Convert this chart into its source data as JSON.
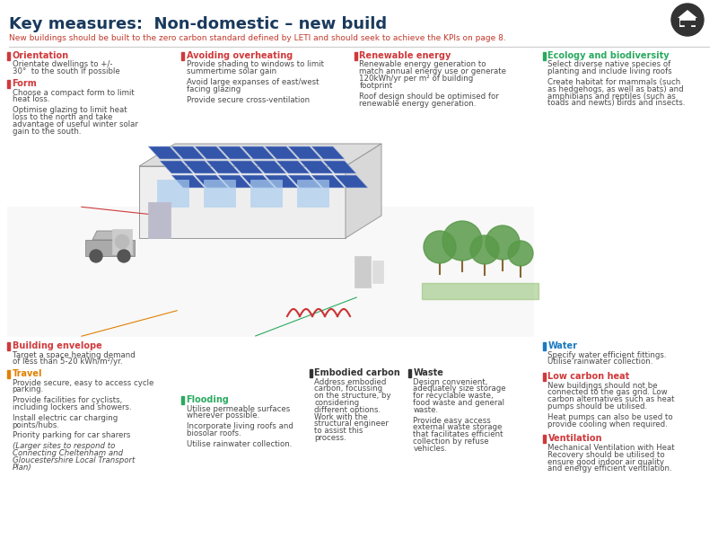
{
  "title": "Key measures:  Non-domestic – new build",
  "subtitle": "New buildings should be built to the zero carbon standard defined by LETI and should seek to achieve the KPIs on page 8.",
  "bg_color": "#ffffff",
  "title_color": "#1a3a5c",
  "subtitle_color": "#c0392b",
  "logo_color": "#333333",
  "divider_color": "#cccccc",
  "sections": {
    "col1_top": [
      {
        "heading": "Orientation",
        "heading_color": "#d0393b",
        "bar_color": "#d0393b",
        "lines": [
          "Orientate dwellings to +/-",
          "30°  to the south if possible"
        ]
      },
      {
        "heading": "Form",
        "heading_color": "#d0393b",
        "bar_color": "#d0393b",
        "lines": [
          "Choose a compact form to limit",
          "heat loss.",
          "",
          "Optimise glazing to limit heat",
          "loss to the north and take",
          "advantage of useful winter solar",
          "gain to the south."
        ]
      }
    ],
    "col1_bot": [
      {
        "heading": "Building envelope",
        "heading_color": "#d0393b",
        "bar_color": "#d0393b",
        "lines": [
          "Target a space heating demand",
          "of less than 5-20 kWh/m²/yr."
        ]
      },
      {
        "heading": "Travel",
        "heading_color": "#e08000",
        "bar_color": "#e08000",
        "lines": [
          "Provide secure, easy to access cycle",
          "parking.",
          "",
          "Provide facilities for cyclists,",
          "including lockers and showers.",
          "",
          "Install electric car charging",
          "points/hubs.",
          "",
          "Priority parking for car sharers",
          "",
          "(Larger sites to respond to",
          "Connecting Cheltenham and",
          "Gloucestershire Local Transport",
          "Plan)"
        ],
        "italic_from": 11
      }
    ],
    "col2_top": [
      {
        "heading": "Avoiding overheating",
        "heading_color": "#d0393b",
        "bar_color": "#d0393b",
        "lines": [
          "Provide shading to windows to limit",
          "summertime solar gain",
          "",
          "Avoid large expanses of east/west",
          "facing glazing",
          "",
          "Provide secure cross-ventilation"
        ]
      }
    ],
    "col2_bot": [
      {
        "heading": "Flooding",
        "heading_color": "#2aaa60",
        "bar_color": "#2aaa60",
        "lines": [
          "Utilise permeable surfaces",
          "wherever possible.",
          "",
          "Incorporate living roofs and",
          "biosolar roofs.",
          "",
          "Utilise rainwater collection."
        ]
      }
    ],
    "col3_top": [
      {
        "heading": "Renewable energy",
        "heading_color": "#d0393b",
        "bar_color": "#d0393b",
        "lines": [
          "Renewable energy generation to",
          "match annual energy use or generate",
          "120kWh/yr per m² of building",
          "footprint",
          "",
          "Roof design should be optimised for",
          "renewable energy generation."
        ]
      }
    ],
    "col3_bot": [
      {
        "heading": "Embodied carbon",
        "heading_color": "#333333",
        "bar_color": "#333333",
        "lines": [
          "Address embodied",
          "carbon, focussing",
          "on the structure, by",
          "considering",
          "different options.",
          "Work with the",
          "structural engineer",
          "to assist this",
          "process."
        ]
      },
      {
        "heading": "Waste",
        "heading_color": "#333333",
        "bar_color": "#333333",
        "lines": [
          "Design convenient,",
          "adequately size storage",
          "for recyclable waste,",
          "food waste and general",
          "waste.",
          "",
          "Provide easy access",
          "external waste storage",
          "that facilitates efficient",
          "collection by refuse",
          "vehicles."
        ]
      }
    ],
    "col4_top": [
      {
        "heading": "Ecology and biodiversity",
        "heading_color": "#2aaa60",
        "bar_color": "#2aaa60",
        "lines": [
          "Select diverse native species of",
          "planting and include living roofs",
          "",
          "Create habitat for mammals (such",
          "as hedgehogs, as well as bats) and",
          "amphibians and reptiles (such as",
          "toads and newts) birds and insects."
        ]
      }
    ],
    "col4_bot": [
      {
        "heading": "Water",
        "heading_color": "#1a7abf",
        "bar_color": "#1a7abf",
        "lines": [
          "Specify water efficient fittings.",
          "Utilise rainwater collection."
        ]
      },
      {
        "heading": "Low carbon heat",
        "heading_color": "#d0393b",
        "bar_color": "#d0393b",
        "lines": [
          "New buildings should not be",
          "connected to the gas grid. Low",
          "carbon alternatives such as heat",
          "pumps should be utilised.",
          "",
          "Heat pumps can also be used to",
          "provide cooling when required."
        ]
      },
      {
        "heading": "Ventilation",
        "heading_color": "#d0393b",
        "bar_color": "#d0393b",
        "lines": [
          "Mechanical Ventilation with Heat",
          "Recovery should be utilised to",
          "ensure good indoor air quality",
          "and energy efficient ventilation."
        ]
      }
    ]
  }
}
